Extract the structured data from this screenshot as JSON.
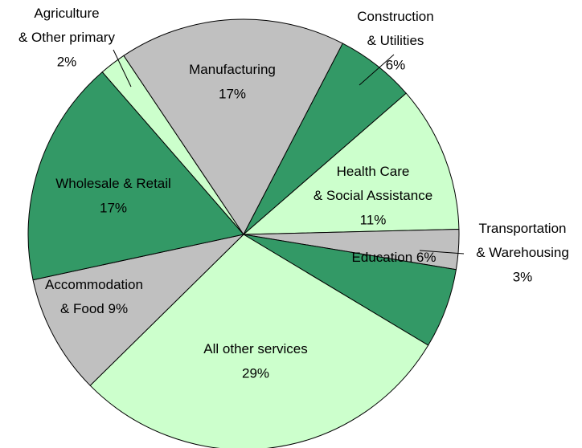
{
  "chart_data": {
    "type": "pie",
    "categories": [
      [
        "Agriculture",
        "& Other primary"
      ],
      [
        "Manufacturing"
      ],
      [
        "Construction",
        "& Utilities"
      ],
      [
        "Health Care",
        "& Social Assistance"
      ],
      [
        "Transportation",
        "& Warehousing"
      ],
      [
        "Education"
      ],
      [
        "All other services"
      ],
      [
        "Accommodation",
        "& Food"
      ],
      [
        "Wholesale & Retail"
      ]
    ],
    "values": [
      2,
      17,
      6,
      11,
      3,
      6,
      29,
      9,
      17
    ],
    "value_labels": [
      "2%",
      "17%",
      "6%",
      "11%",
      "3%",
      "6%",
      "29%",
      "9%",
      "17%"
    ],
    "colors": [
      "#ccffcc",
      "#c0c0c0",
      "#339966",
      "#ccffcc",
      "#c0c0c0",
      "#339966",
      "#ccffcc",
      "#c0c0c0",
      "#339966"
    ]
  }
}
